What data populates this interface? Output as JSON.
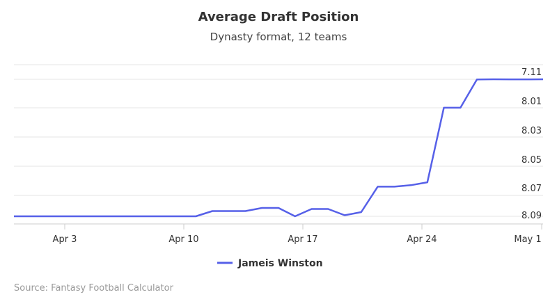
{
  "chart_data": {
    "type": "line",
    "title": "Average Draft Position",
    "subtitle": "Dynasty format, 12 teams",
    "xlabel": "",
    "ylabel": "",
    "x_tick_labels": [
      "Apr 3",
      "Apr 10",
      "Apr 17",
      "Apr 24",
      "May 1"
    ],
    "y_tick_labels": [
      "7.11",
      "8.01",
      "8.03",
      "8.05",
      "8.07",
      "8.09"
    ],
    "y_reversed": true,
    "grid": true,
    "legend_position": "bottom",
    "series": [
      {
        "name": "Jameis Winston",
        "color": "#5660e8",
        "x": [
          "Mar 31",
          "Apr 1",
          "Apr 2",
          "Apr 3",
          "Apr 4",
          "Apr 5",
          "Apr 6",
          "Apr 7",
          "Apr 8",
          "Apr 9",
          "Apr 10",
          "Apr 11",
          "Apr 12",
          "Apr 13",
          "Apr 14",
          "Apr 15",
          "Apr 16",
          "Apr 17",
          "Apr 18",
          "Apr 19",
          "Apr 20",
          "Apr 21",
          "Apr 22",
          "Apr 23",
          "Apr 24",
          "Apr 25",
          "Apr 26",
          "Apr 27",
          "Apr 28",
          "Apr 29",
          "Apr 30",
          "May 1",
          "May 2"
        ],
        "y": [
          8.09,
          8.09,
          8.09,
          8.09,
          8.09,
          8.09,
          8.09,
          8.09,
          8.09,
          8.09,
          8.09,
          8.09,
          8.085,
          8.085,
          8.085,
          8.082,
          8.082,
          8.09,
          8.083,
          8.083,
          8.089,
          8.086,
          8.064,
          8.064,
          8.063,
          8.061,
          8.007,
          8.007,
          7.115,
          7.11,
          7.112,
          7.112,
          7.11
        ]
      }
    ]
  },
  "credit": "Source: Fantasy Football Calculator"
}
